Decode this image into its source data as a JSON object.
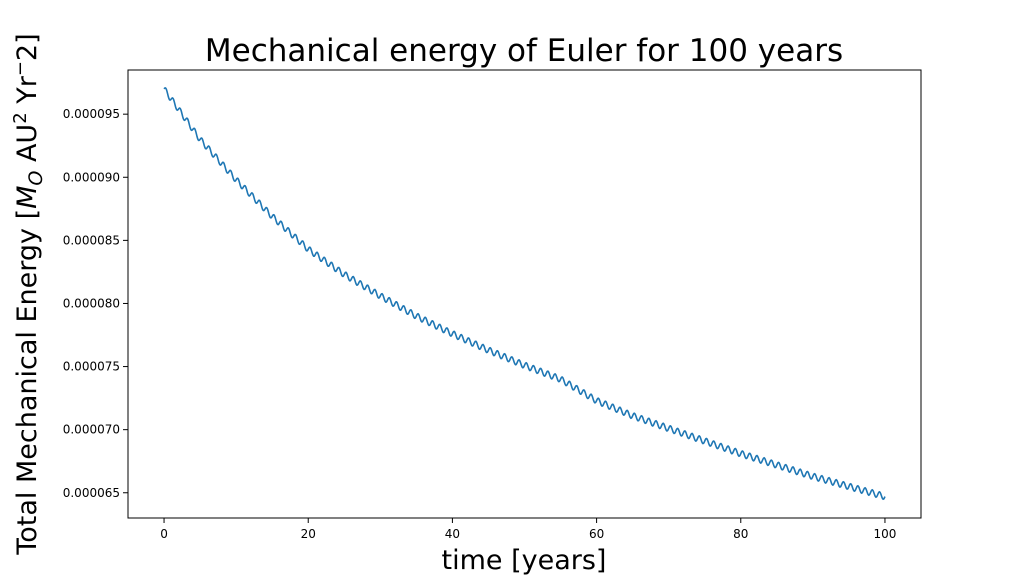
{
  "chart_data": {
    "type": "line",
    "title": "Mechanical energy of Euler for 100 years",
    "xlabel": "time [years]",
    "ylabel_parts": {
      "prefix": "Total Mechanical Energy [",
      "m": "M",
      "m_sub": "O",
      "au": " AU",
      "au_sup": "2",
      "yr": " Yr",
      "yr_sup": "−",
      "suffix": "2]"
    },
    "xlim": [
      -5,
      105
    ],
    "ylim": [
      6.3e-05,
      9.85e-05
    ],
    "xticks": [
      0,
      20,
      40,
      60,
      80,
      100
    ],
    "xtick_labels": [
      "0",
      "20",
      "40",
      "60",
      "80",
      "100"
    ],
    "yticks": [
      6.5e-05,
      7e-05,
      7.5e-05,
      8e-05,
      8.5e-05,
      9e-05,
      9.5e-05
    ],
    "ytick_labels": [
      "0.000065",
      "0.000070",
      "0.000075",
      "0.000080",
      "0.000085",
      "0.000090",
      "0.000095"
    ],
    "grid": false,
    "series": [
      {
        "color": "#1f77b4",
        "x": [
          0,
          5,
          10,
          15,
          20,
          25,
          30,
          35,
          40,
          45,
          50,
          55,
          60,
          65,
          70,
          75,
          80,
          85,
          90,
          95,
          100
        ],
        "y": [
          9.7e-05,
          9.3e-05,
          8.98e-05,
          8.69e-05,
          8.43e-05,
          8.23e-05,
          8.06e-05,
          7.9e-05,
          7.76e-05,
          7.63e-05,
          7.51e-05,
          7.4e-05,
          7.23e-05,
          7.11e-05,
          7.01e-05,
          6.91e-05,
          6.81e-05,
          6.72e-05,
          6.63e-05,
          6.55e-05,
          6.47e-05
        ],
        "oscillation": {
          "period_years": 1.0,
          "amplitude": 2.5e-07
        }
      }
    ]
  }
}
